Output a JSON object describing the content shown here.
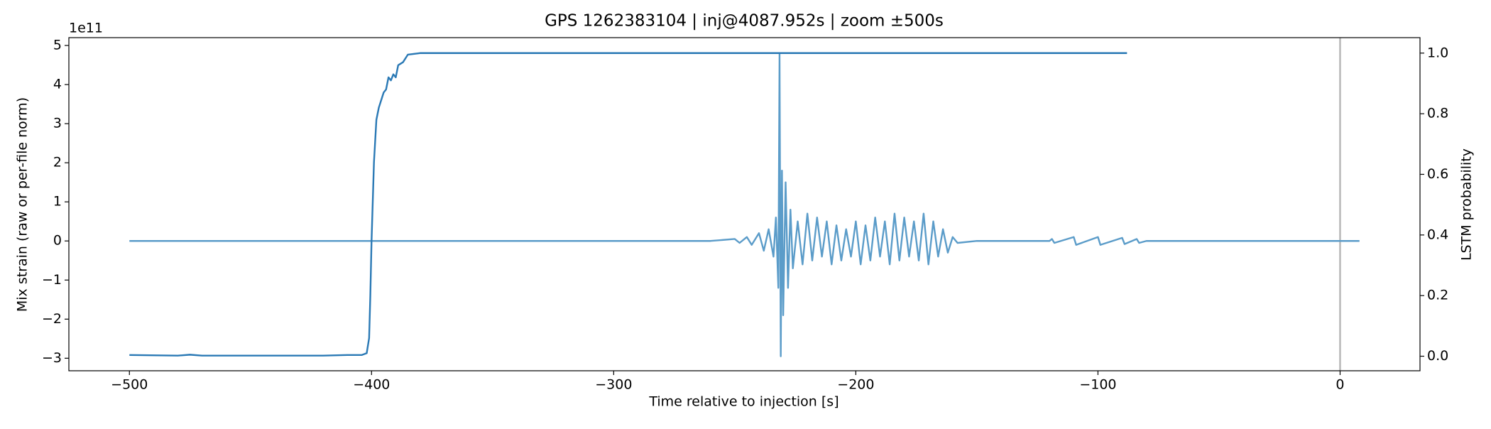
{
  "chart_data": {
    "type": "line",
    "title": "GPS 1262383104 | inj@4087.952s | zoom ±500s",
    "xlabel": "Time relative to injection [s]",
    "ylabel": "Mix strain (raw or per-file norm)",
    "y2label": "LSTM probability",
    "y_offset_label": "1e11",
    "xlim": [
      -525,
      33
    ],
    "ylim": [
      -3.32,
      5.2
    ],
    "y2lim": [
      -0.048,
      1.051
    ],
    "xticks": [
      {
        "value": -500,
        "label": "−500"
      },
      {
        "value": -400,
        "label": "−400"
      },
      {
        "value": -300,
        "label": "−300"
      },
      {
        "value": -200,
        "label": "−200"
      },
      {
        "value": -100,
        "label": "−100"
      },
      0
    ],
    "yticks": [
      {
        "value": -3,
        "label": "−3"
      },
      {
        "value": -2,
        "label": "−2"
      },
      {
        "value": -1,
        "label": "−1"
      },
      0,
      1,
      2,
      3,
      4,
      5
    ],
    "y2ticks": [
      0.0,
      0.2,
      0.4,
      0.6,
      0.8,
      1.0
    ],
    "vline": {
      "x": 0,
      "color": "#b8b8b8"
    },
    "series": [
      {
        "name": "Mix strain",
        "color": "#5b9cc9",
        "x": [
          -500,
          -400,
          -300,
          -260,
          -250,
          -248,
          -245,
          -243,
          -240,
          -238,
          -236,
          -234,
          -233,
          -232,
          -231.5,
          -231,
          -230.5,
          -230,
          -229,
          -228,
          -227,
          -226,
          -224,
          -222,
          -220,
          -218,
          -216,
          -214,
          -212,
          -210,
          -208,
          -206,
          -204,
          -202,
          -200,
          -198,
          -196,
          -194,
          -192,
          -190,
          -188,
          -186,
          -184,
          -182,
          -180,
          -178,
          -176,
          -174,
          -172,
          -170,
          -168,
          -166,
          -164,
          -162,
          -160,
          -158,
          -150,
          -120,
          -119,
          -118,
          -110,
          -109,
          -100,
          -99,
          -90,
          -89,
          -84,
          -83,
          -80,
          8
        ],
        "values": [
          0,
          0,
          0,
          0,
          0.05,
          -0.05,
          0.1,
          -0.1,
          0.2,
          -0.25,
          0.3,
          -0.4,
          0.6,
          -1.2,
          4.8,
          -2.95,
          1.8,
          -1.9,
          1.5,
          -1.2,
          0.8,
          -0.7,
          0.5,
          -0.6,
          0.7,
          -0.5,
          0.6,
          -0.4,
          0.5,
          -0.6,
          0.4,
          -0.5,
          0.3,
          -0.4,
          0.5,
          -0.6,
          0.4,
          -0.5,
          0.6,
          -0.4,
          0.5,
          -0.6,
          0.7,
          -0.5,
          0.6,
          -0.4,
          0.5,
          -0.5,
          0.7,
          -0.6,
          0.5,
          -0.4,
          0.3,
          -0.3,
          0.1,
          -0.05,
          0,
          0,
          0.05,
          -0.05,
          0.1,
          -0.1,
          0.1,
          -0.1,
          0.08,
          -0.08,
          0.05,
          -0.05,
          0,
          0
        ]
      },
      {
        "name": "LSTM probability",
        "color": "#2a79b5",
        "axis": "y2",
        "x": [
          -500,
          -480,
          -475,
          -470,
          -420,
          -410,
          -404,
          -402,
          -401,
          -400.5,
          -400,
          -399,
          -398,
          -397,
          -395,
          -394,
          -393,
          -392,
          -391,
          -390,
          -389,
          -387,
          -385,
          -380,
          -300,
          -88
        ],
        "values": [
          0.004,
          0.002,
          0.005,
          0.002,
          0.002,
          0.004,
          0.004,
          0.01,
          0.06,
          0.2,
          0.38,
          0.64,
          0.78,
          0.82,
          0.87,
          0.88,
          0.92,
          0.91,
          0.93,
          0.92,
          0.96,
          0.97,
          0.995,
          1.0,
          1.0,
          1.0
        ]
      }
    ]
  }
}
